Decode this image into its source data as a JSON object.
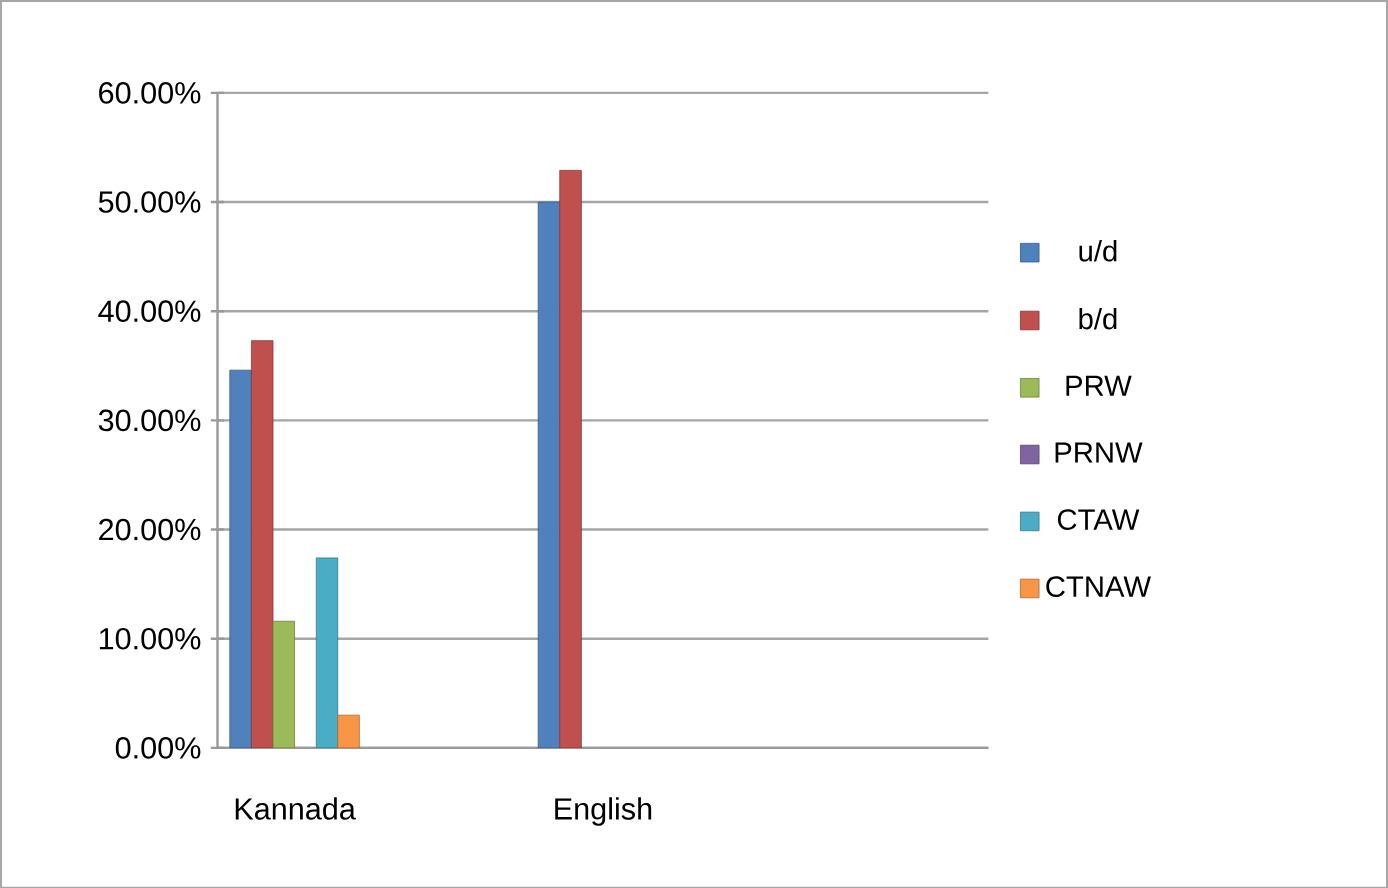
{
  "chart_data": {
    "type": "bar",
    "categories": [
      "Kannada",
      null,
      "English",
      null,
      null
    ],
    "series": [
      {
        "name": "u/d",
        "color": "#4f81bd",
        "values": [
          34.6,
          null,
          50.0,
          null,
          null
        ]
      },
      {
        "name": "b/d",
        "color": "#c0504d",
        "values": [
          37.3,
          null,
          52.9,
          null,
          null
        ]
      },
      {
        "name": "PRW",
        "color": "#9bbb59",
        "values": [
          11.6,
          null,
          null,
          null,
          null
        ]
      },
      {
        "name": "PRNW",
        "color": "#8064a2",
        "values": [
          null,
          null,
          null,
          null,
          null
        ]
      },
      {
        "name": "CTAW",
        "color": "#4bacc6",
        "values": [
          17.4,
          null,
          null,
          null,
          null
        ]
      },
      {
        "name": "CTNAW",
        "color": "#f79646",
        "values": [
          3.0,
          null,
          null,
          null,
          null
        ]
      }
    ],
    "ylim": [
      0,
      60
    ],
    "yticks": [
      {
        "value": 0,
        "label": "0.00%"
      },
      {
        "value": 10,
        "label": "10.00%"
      },
      {
        "value": 20,
        "label": "20.00%"
      },
      {
        "value": 30,
        "label": "30.00%"
      },
      {
        "value": 40,
        "label": "40.00%"
      },
      {
        "value": 50,
        "label": "50.00%"
      },
      {
        "value": 60,
        "label": "60.00%"
      }
    ],
    "grid": "y",
    "legend": "right"
  }
}
